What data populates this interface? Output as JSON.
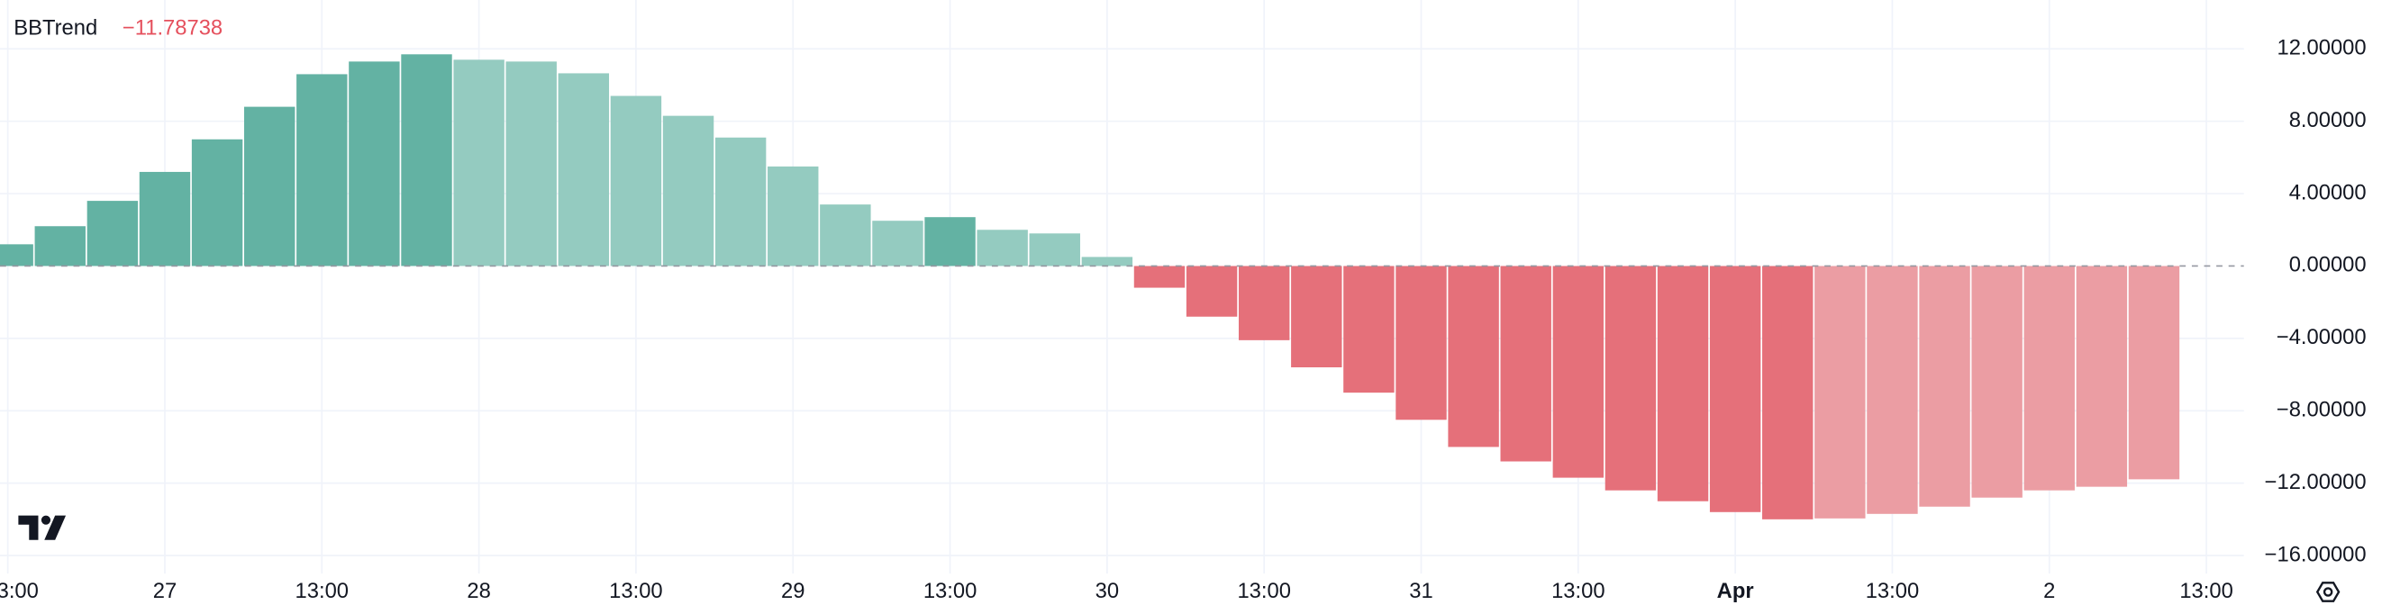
{
  "chart_data": {
    "type": "bar",
    "legend_name": "BBTrend",
    "legend_value": {
      "value": -11.78738,
      "label": "−11.78738"
    },
    "categories": [
      "3:00",
      null,
      null,
      "27",
      null,
      null,
      "13:00",
      null,
      null,
      "28",
      null,
      null,
      "13:00",
      null,
      null,
      "29",
      null,
      null,
      "13:00",
      null,
      null,
      "30",
      null,
      null,
      "13:00",
      null,
      null,
      "31",
      null,
      null,
      "13:00",
      null,
      null,
      "Apr",
      null,
      null,
      "13:00",
      null,
      null,
      "2",
      null,
      null,
      "13:00"
    ],
    "values": [
      1.2,
      2.2,
      3.6,
      5.2,
      7.0,
      8.8,
      10.6,
      11.3,
      11.7,
      11.4,
      11.3,
      10.65,
      9.4,
      8.3,
      7.1,
      5.5,
      3.4,
      2.5,
      2.7,
      2.0,
      1.8,
      0.5,
      -1.2,
      -2.8,
      -4.1,
      -5.6,
      -7.0,
      -8.5,
      -10.0,
      -10.8,
      -11.7,
      -12.4,
      -13.0,
      -13.6,
      -14.0,
      -13.95,
      -13.7,
      -13.3,
      -12.8,
      -12.4,
      -12.2,
      -11.78738,
      null
    ],
    "colors": [
      "#63b2a3",
      "#63b2a3",
      "#63b2a3",
      "#63b2a3",
      "#63b2a3",
      "#63b2a3",
      "#63b2a3",
      "#63b2a3",
      "#63b2a3",
      "#94cbc0",
      "#94cbc0",
      "#94cbc0",
      "#94cbc0",
      "#94cbc0",
      "#94cbc0",
      "#94cbc0",
      "#94cbc0",
      "#94cbc0",
      "#63b2a3",
      "#94cbc0",
      "#94cbc0",
      "#94cbc0",
      "#e5707a",
      "#e5707a",
      "#e5707a",
      "#e5707a",
      "#e5707a",
      "#e5707a",
      "#e5707a",
      "#e5707a",
      "#e5707a",
      "#e5707a",
      "#e5707a",
      "#e5707a",
      "#e5707a",
      "#eb9da3",
      "#eb9da3",
      "#eb9da3",
      "#eb9da3",
      "#eb9da3",
      "#eb9da3",
      "#eb9da3"
    ],
    "ylim": [
      -17,
      14.7
    ],
    "yticks": [
      {
        "value": 12,
        "label": "12.00000"
      },
      {
        "value": 8,
        "label": "8.00000"
      },
      {
        "value": 4,
        "label": "4.00000"
      },
      {
        "value": 0,
        "label": "0.00000"
      },
      {
        "value": -4,
        "label": "−4.00000"
      },
      {
        "value": -8,
        "label": "−8.00000"
      },
      {
        "value": -12,
        "label": "−12.00000"
      },
      {
        "value": -16,
        "label": "−16.00000"
      }
    ],
    "grid": true
  }
}
